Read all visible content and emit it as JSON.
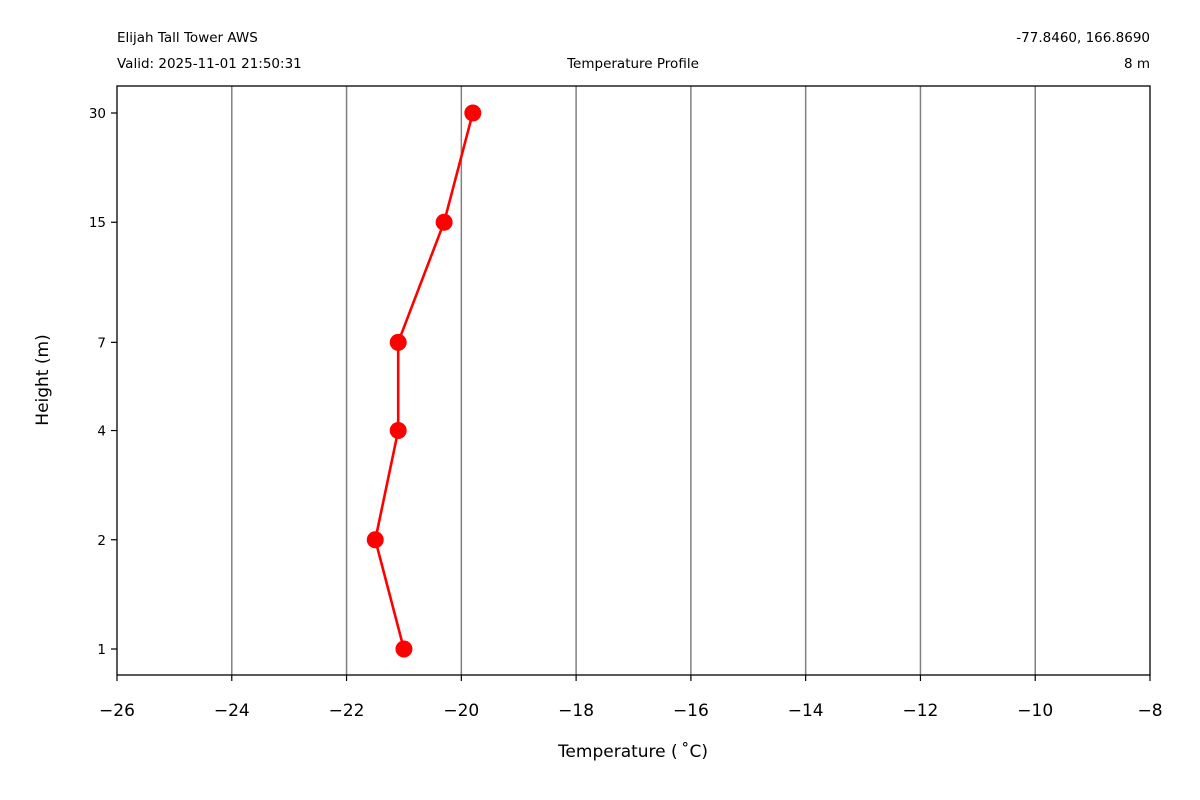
{
  "header": {
    "station": "Elijah Tall Tower AWS",
    "valid": "Valid: 2025-11-01 21:50:31",
    "plot_title": "Temperature Profile",
    "coords": "-77.8460, 166.8690",
    "elevation": "8 m"
  },
  "chart_data": {
    "type": "line",
    "title": "Temperature Profile",
    "xlabel": "Temperature ( ˚C)",
    "ylabel": "Height (m)",
    "xlim": [
      -26,
      -8
    ],
    "xticks": [
      -26,
      -24,
      -22,
      -20,
      -18,
      -16,
      -14,
      -12,
      -10,
      -8
    ],
    "xtick_labels": [
      "−26",
      "−24",
      "−22",
      "−20",
      "−18",
      "−16",
      "−14",
      "−12",
      "−10",
      "−8"
    ],
    "yscale": "log",
    "yticks": [
      1,
      2,
      4,
      7,
      15,
      30
    ],
    "ytick_labels": [
      "1",
      "2",
      "4",
      "7",
      "15",
      "30"
    ],
    "grid": "vertical",
    "series": [
      {
        "color": "#ff0000",
        "x": [
          -21.0,
          -21.5,
          -21.1,
          -21.1,
          -20.3,
          -19.8
        ],
        "y": [
          1,
          2,
          4,
          7,
          15,
          30
        ]
      }
    ]
  }
}
